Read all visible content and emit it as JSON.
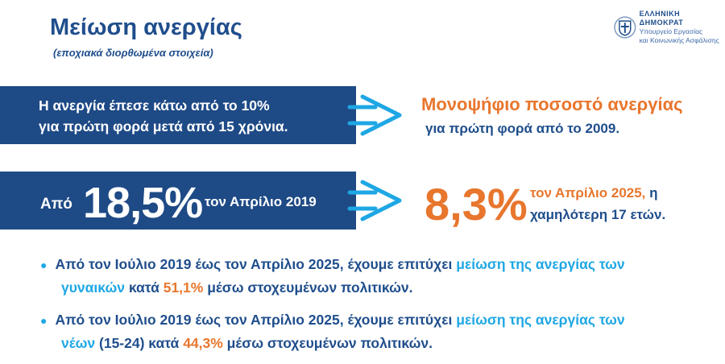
{
  "header": {
    "title": "Μείωση ανεργίας",
    "subtitle": "(εποχιακά διορθωμένα στοιχεία)",
    "logo": {
      "line1": "ΕΛΛΗΝΙΚΗ ΔΗΜΟΚΡΑΤ",
      "line2": "Υπουργείο Εργασίας",
      "line3": "και Κοινωνικής Ασφάλισης",
      "icon": "greek-coat-of-arms-icon"
    }
  },
  "row1": {
    "left_line1": "Η ανεργία έπεσε κάτω από το 10%",
    "left_line2": "για πρώτη φορά μετά από 15 χρόνια.",
    "right_line1": "Μονοψήφιο ποσοστό ανεργίας",
    "right_line2": "για πρώτη φορά από το 2009."
  },
  "row2": {
    "from": "Από",
    "value_from": "18,5%",
    "month_from": "τον Απρίλιο 2019",
    "value_to": "8,3%",
    "month_to": "τον Απρίλιο 2025,",
    "suffix_to": "η",
    "line2": "χαμηλότερη 17 ετών."
  },
  "bullets": [
    {
      "p1": "Από τον Ιούλιο 2019 έως τον Απρίλιο 2025, έχουμε επιτύχει ",
      "h1": "μείωση της ανεργίας των",
      "h2": "γυναικών",
      "p2": " κατά ",
      "v": "51,1%",
      "p3": " μέσω στοχευμένων πολιτικών."
    },
    {
      "p1": "Από τον Ιούλιο 2019 έως τον Απρίλιο 2025, έχουμε επιτύχει ",
      "h1": "μείωση της ανεργίας των",
      "h2": "νέων",
      "p2": " (15-24) κατά ",
      "v": "44,3%",
      "p3": " μέσω στοχευμένων πολιτικών."
    }
  ],
  "colors": {
    "navy": "#1e4a86",
    "orange": "#e8762d",
    "cyan": "#1ea7e4"
  }
}
